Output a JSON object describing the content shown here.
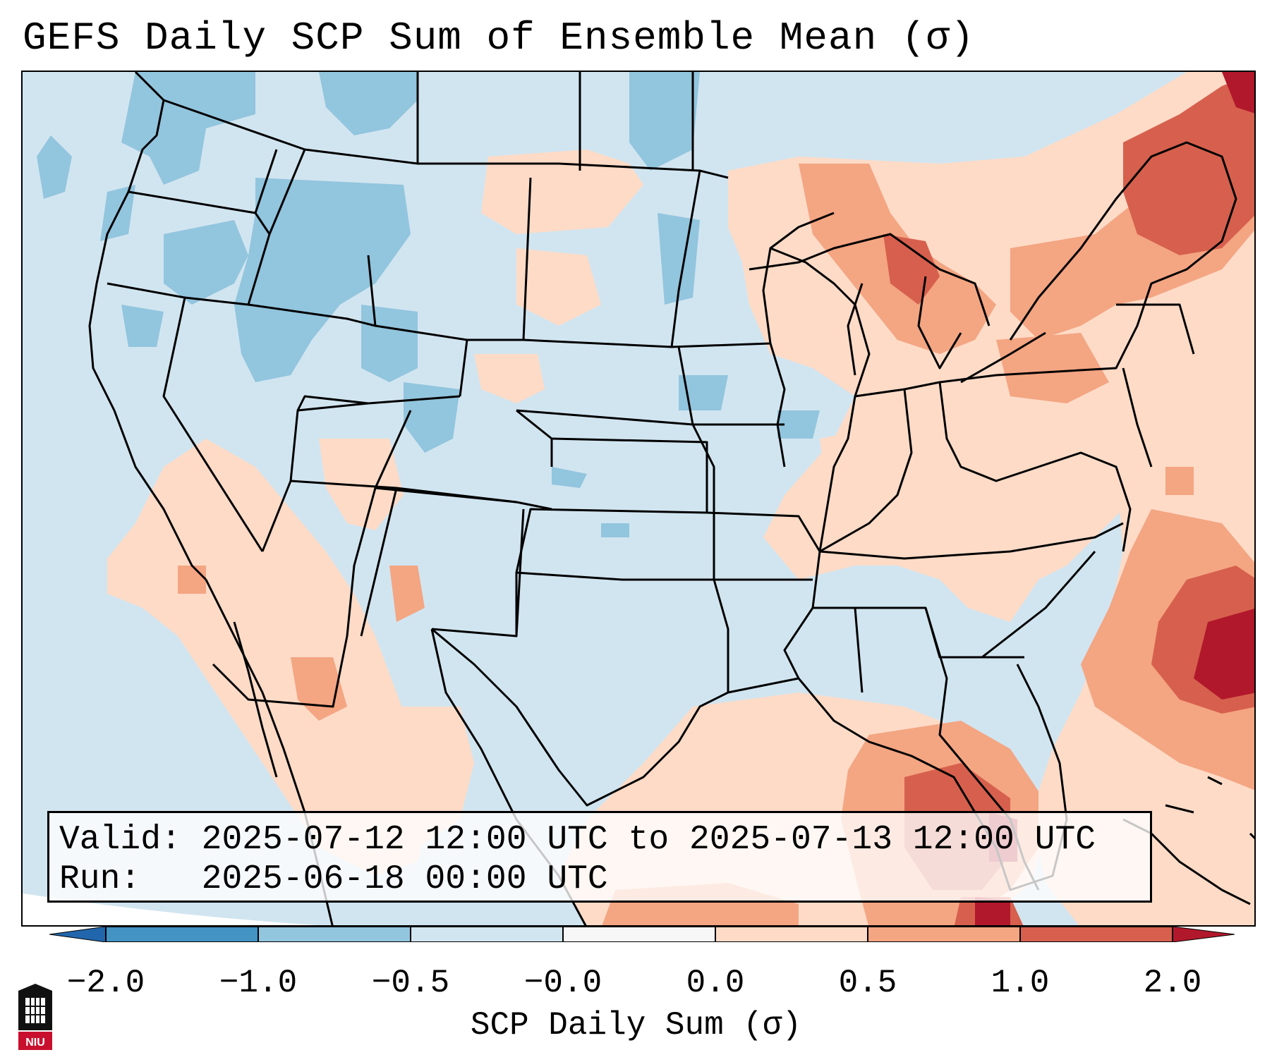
{
  "title": "GEFS Daily SCP Sum of Ensemble Mean (σ)",
  "map": {
    "region": "Contiguous United States",
    "overlay_lines": [
      {
        "label": "Valid:",
        "value": "2025-07-12 12:00 UTC to 2025-07-13 12:00 UTC"
      },
      {
        "label": "Run:",
        "value": "2025-06-18 00:00 UTC"
      }
    ]
  },
  "colorbar": {
    "label": "SCP Daily Sum (σ)",
    "ticks": [
      "−2.0",
      "−1.0",
      "−0.5",
      "−0.0",
      "0.0",
      "0.5",
      "1.0",
      "2.0"
    ],
    "colors": [
      "#4393c3",
      "#92c5de",
      "#d1e5f0",
      "#f7f7f7",
      "#fddbc7",
      "#f4a582",
      "#d6604d"
    ],
    "extend_min_color": "#2166ac",
    "extend_max_color": "#b2182b"
  },
  "legend_colors": {
    "background": "#d1e5f0",
    "ocean_light": "#fddbc7",
    "border": "#000000"
  },
  "logo": {
    "text": "NIU",
    "icon": "university-seal-icon"
  }
}
